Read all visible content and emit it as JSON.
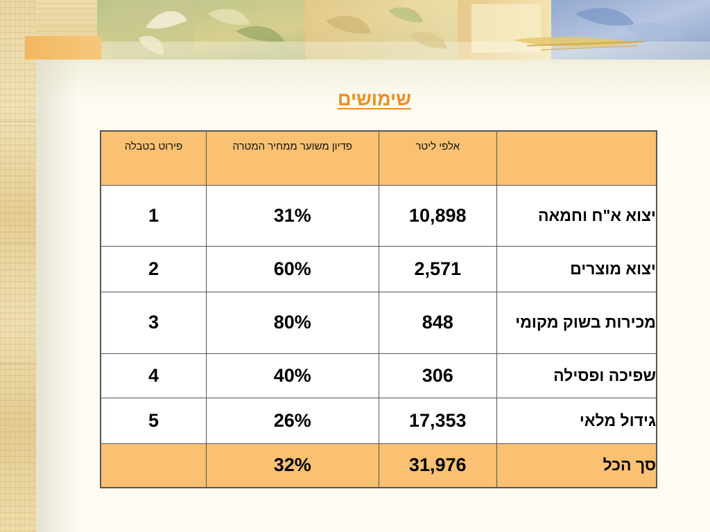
{
  "title": "שימושים",
  "table": {
    "headers": {
      "name": "",
      "liters": "אלפי ליטר",
      "redemption": "פדיון משוער ממחיר המטרה",
      "breakdown": "פירוט בטבלה"
    },
    "rows": [
      {
        "name": "יצוא א\"ח וחמאה",
        "liters": "10,898",
        "redemption": "31%",
        "breakdown": "1"
      },
      {
        "name": "יצוא מוצרים",
        "liters": "2,571",
        "redemption": "60%",
        "breakdown": "2"
      },
      {
        "name": "מכירות בשוק מקומי",
        "liters": "848",
        "redemption": "80%",
        "breakdown": "3"
      },
      {
        "name": "שפיכה ופסילה",
        "liters": "306",
        "redemption": "40%",
        "breakdown": "4"
      },
      {
        "name": "גידול מלאי",
        "liters": "17,353",
        "redemption": "26%",
        "breakdown": "5"
      }
    ],
    "total": {
      "name": "סך הכל",
      "liters": "31,976",
      "redemption": "32%",
      "breakdown": ""
    }
  },
  "colors": {
    "title": "#f08c1e",
    "header_fill": "#f9c171",
    "border": "#555555",
    "background": "#fdfbf2"
  }
}
